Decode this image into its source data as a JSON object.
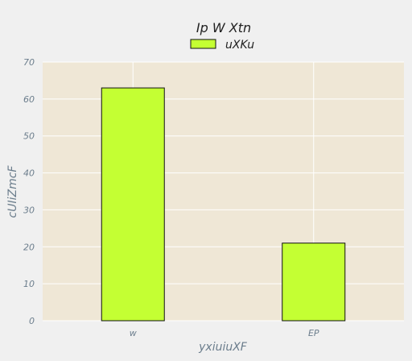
{
  "chart_data": {
    "type": "bar",
    "title": "Ip W Xtn",
    "xlabel": "yxiuiuXF",
    "ylabel": "cUIiZmcF",
    "categories": [
      "w",
      "EP"
    ],
    "series": [
      {
        "name": "uXKu",
        "values": [
          63,
          21
        ]
      }
    ],
    "ylim": [
      0,
      70
    ],
    "yticks": [
      0,
      10,
      20,
      30,
      40,
      50,
      60,
      70
    ],
    "grid": true,
    "legend_position": "top-center",
    "colors": {
      "bar_fill": "#c4ff33",
      "bar_edge": "#111111",
      "plot_background": "#efe7d6",
      "figure_background": "#f0f0f0",
      "grid": "#ffffff"
    }
  }
}
